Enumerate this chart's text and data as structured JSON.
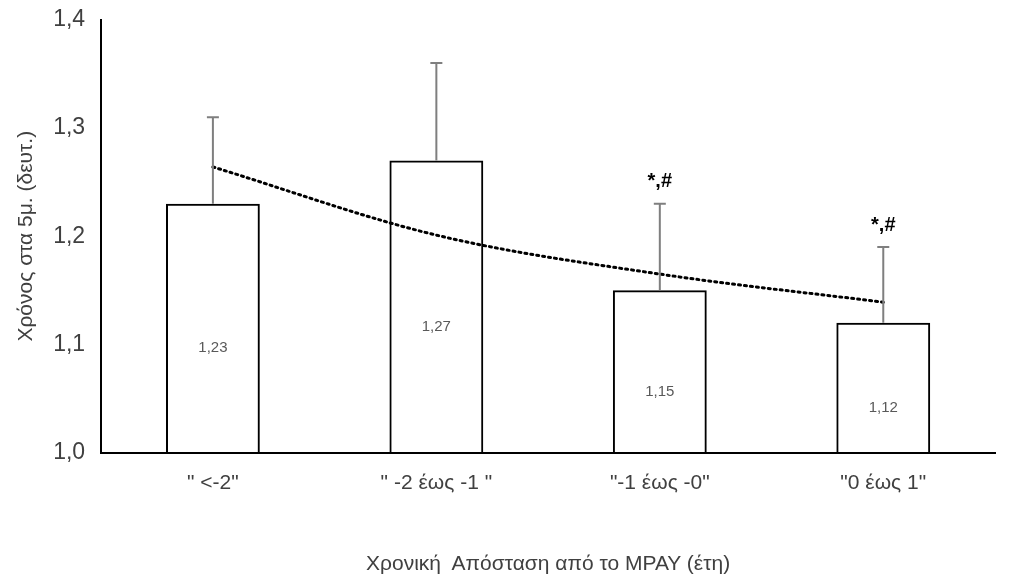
{
  "chart_data": {
    "type": "bar",
    "xlabel": "Χρονική  Απόσταση από το ΜΡΑΥ (έτη)",
    "ylabel": "Χρόνος στα 5μ. (δευτ.)",
    "categories": [
      "\" <-2\"",
      "\" -2 έως -1 \"",
      "\"-1 έως -0\"",
      "\"0 έως 1\""
    ],
    "series": [
      {
        "color": "#000000",
        "values": [
          1.23,
          1.27,
          1.15,
          1.12
        ],
        "errors": [
          [
            1.23,
            1.31
          ],
          [
            1.27,
            1.36
          ],
          [
            1.15,
            1.23
          ],
          [
            1.12,
            1.19
          ]
        ],
        "value_labels": [
          "1,23",
          "1,27",
          "1,15",
          "1,12"
        ]
      },
      {
        "type": "line",
        "color": "#000000",
        "line_style": "dotted",
        "marker": "none",
        "x": [
          "\" <-2\"",
          "\" -2 έως -1 \"",
          "\"-1 έως -0\"",
          "\"0 έως 1\""
        ],
        "values": [
          1.264,
          1.201,
          1.165,
          1.139
        ]
      }
    ],
    "ylim": [
      1.0,
      1.4
    ],
    "yticks": [
      {
        "value": 1.0,
        "label": "1,0"
      },
      {
        "value": 1.1,
        "label": "1,1"
      },
      {
        "value": 1.2,
        "label": "1,2"
      },
      {
        "value": 1.3,
        "label": "1,3"
      },
      {
        "value": 1.4,
        "label": "1,4"
      }
    ],
    "annotations": [
      {
        "text": "*,#",
        "x": "\"-1 έως -0\"",
        "y": 1.23
      },
      {
        "text": "*,#",
        "x": "\"0 έως 1\"",
        "y": 1.19
      }
    ],
    "grid": false,
    "legend": false
  }
}
